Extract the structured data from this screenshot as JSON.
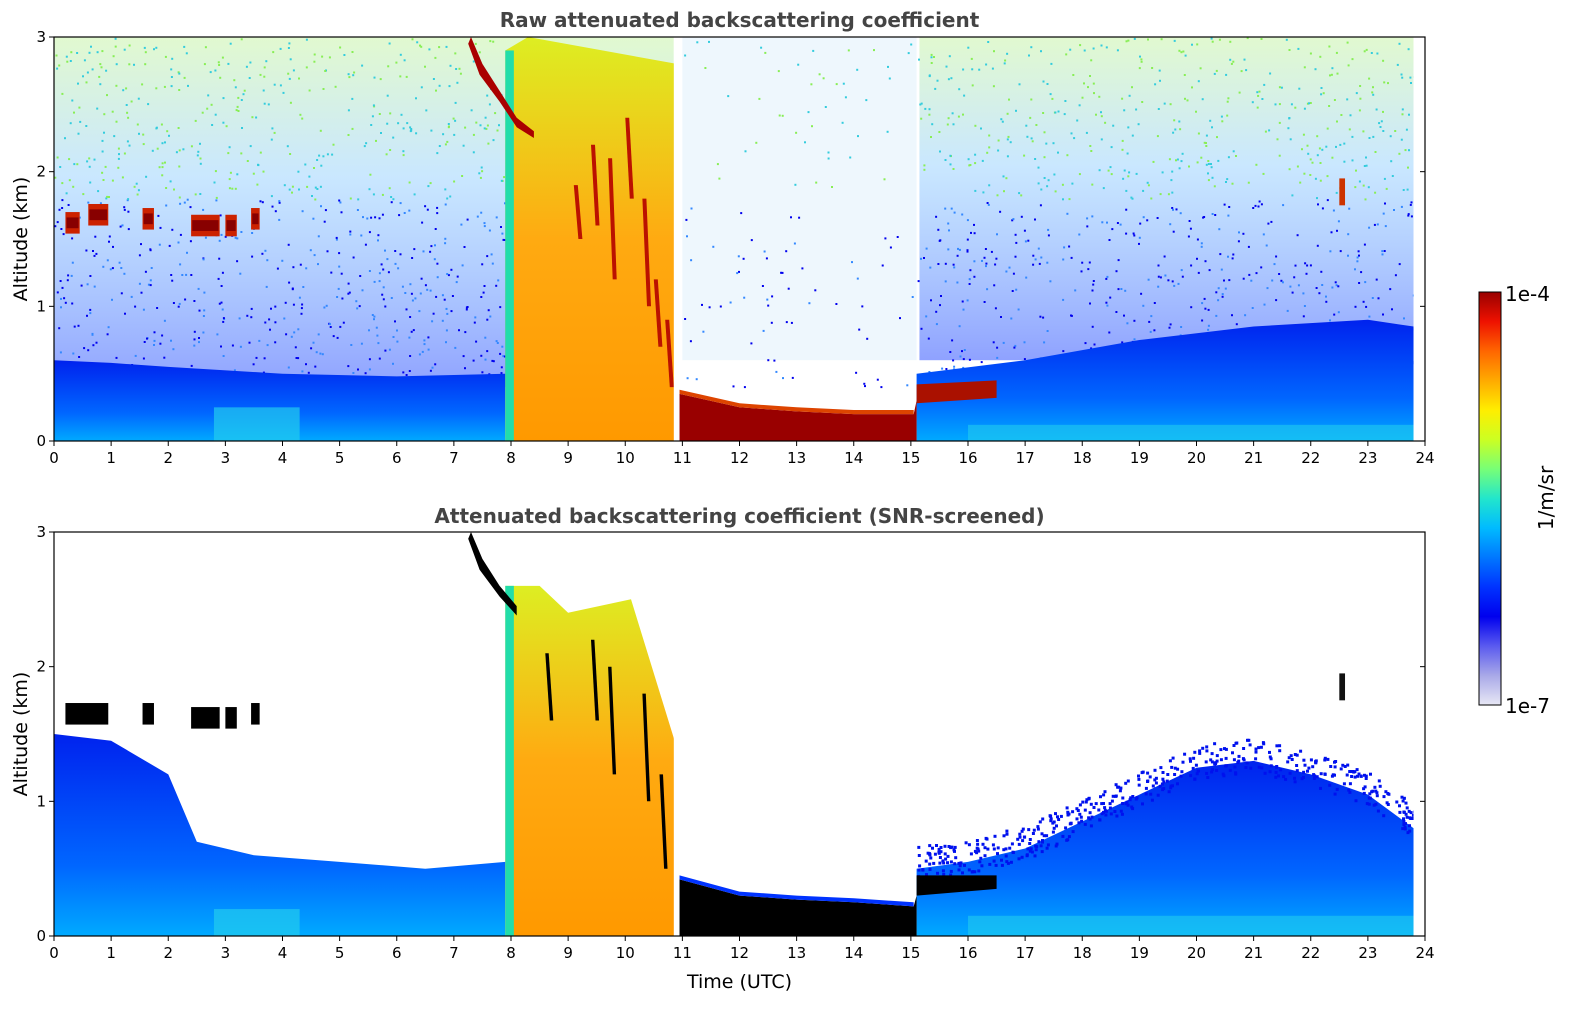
{
  "chart_data": [
    {
      "type": "heatmap",
      "title": "Raw attenuated backscattering coefficient",
      "xlabel": "",
      "ylabel": "Altitude (km)",
      "xlim": [
        0,
        24
      ],
      "ylim": [
        0,
        3
      ],
      "xticks": [
        "0",
        "1",
        "2",
        "3",
        "4",
        "5",
        "6",
        "7",
        "8",
        "9",
        "10",
        "11",
        "12",
        "13",
        "14",
        "15",
        "16",
        "17",
        "18",
        "19",
        "20",
        "21",
        "22",
        "23",
        "24"
      ],
      "yticks": [
        "0",
        "1",
        "2",
        "3"
      ],
      "data_end_time": 23.8,
      "features": [
        {
          "kind": "boundary_layer",
          "t0": 0,
          "t1": 7.9,
          "z_top": 0.6
        },
        {
          "kind": "cloud_band",
          "t0": 0.2,
          "t1": 3.6,
          "z": 1.6,
          "thickness": 0.15
        },
        {
          "kind": "precipitation",
          "t0": 7.9,
          "t1": 10.9,
          "z_top": 3.0
        },
        {
          "kind": "cloud_base",
          "t0": 11.0,
          "t1": 15.1,
          "z": 0.2
        },
        {
          "kind": "boundary_layer",
          "t0": 15.1,
          "t1": 23.8,
          "z_top": 0.8
        },
        {
          "kind": "cloud_patch",
          "t0": 22.5,
          "t1": 22.6,
          "z": 1.85
        }
      ]
    },
    {
      "type": "heatmap",
      "title": "Attenuated backscattering coefficient (SNR-screened)",
      "xlabel": "Time (UTC)",
      "ylabel": "Altitude (km)",
      "xlim": [
        0,
        24
      ],
      "ylim": [
        0,
        3
      ],
      "xticks": [
        "0",
        "1",
        "2",
        "3",
        "4",
        "5",
        "6",
        "7",
        "8",
        "9",
        "10",
        "11",
        "12",
        "13",
        "14",
        "15",
        "16",
        "17",
        "18",
        "19",
        "20",
        "21",
        "22",
        "23",
        "24"
      ],
      "yticks": [
        "0",
        "1",
        "2",
        "3"
      ],
      "screened_layer_top": [
        [
          0,
          1.5
        ],
        [
          1.0,
          1.45
        ],
        [
          2.0,
          1.2
        ],
        [
          2.5,
          0.7
        ],
        [
          3.5,
          0.6
        ],
        [
          5.0,
          0.55
        ],
        [
          6.5,
          0.5
        ],
        [
          7.9,
          0.55
        ],
        [
          15.1,
          0.5
        ],
        [
          16.0,
          0.55
        ],
        [
          17.0,
          0.65
        ],
        [
          18.0,
          0.85
        ],
        [
          19.0,
          1.05
        ],
        [
          20.0,
          1.25
        ],
        [
          21.0,
          1.3
        ],
        [
          22.0,
          1.2
        ],
        [
          23.0,
          1.05
        ],
        [
          23.8,
          0.8
        ]
      ]
    }
  ],
  "colorbar": {
    "max_label": "1e-4",
    "min_label": "1e-7",
    "unit_label": "1/m/sr",
    "scale": "log",
    "range": [
      1e-07,
      0.0001
    ],
    "colors": [
      "#e8e8f5",
      "#a9a9e8",
      "#5a5aef",
      "#0000ee",
      "#0033ff",
      "#0077ff",
      "#00bbff",
      "#22e6cc",
      "#77ff77",
      "#ccff22",
      "#ffee00",
      "#ffaa00",
      "#ff6600",
      "#ee1100",
      "#990000"
    ]
  },
  "colors": {
    "raw_noise": "#ffffff",
    "title_text": "#444444",
    "screened_black": "#000000"
  }
}
